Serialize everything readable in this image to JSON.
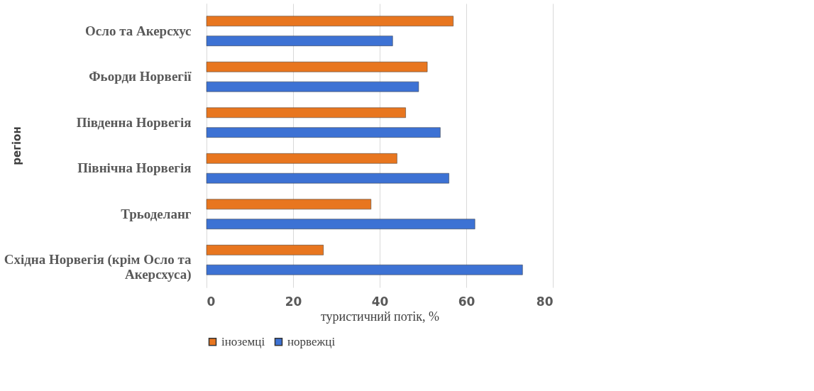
{
  "chart_data": {
    "type": "bar",
    "orientation": "horizontal",
    "xlabel": "туристичний потік, %",
    "ylabel": "регіон",
    "categories": [
      "Осло та Акерсхус",
      "Фьорди Норвегії",
      "Південна Норвегія",
      "Північна Норвегія",
      "Трьоделанг",
      "Східна Норвегія (крім Осло та Акерсхуса)"
    ],
    "series": [
      {
        "name": "іноземці",
        "color": "#e8761f",
        "values": [
          57,
          51,
          46,
          44,
          38,
          27
        ]
      },
      {
        "name": "норвежці",
        "color": "#3d72d4",
        "values": [
          43,
          49,
          54,
          56,
          62,
          73
        ]
      }
    ],
    "xlim": [
      0,
      80
    ],
    "xticks": [
      0,
      20,
      40,
      60,
      80
    ],
    "grid": "x",
    "legend": "bottom"
  }
}
